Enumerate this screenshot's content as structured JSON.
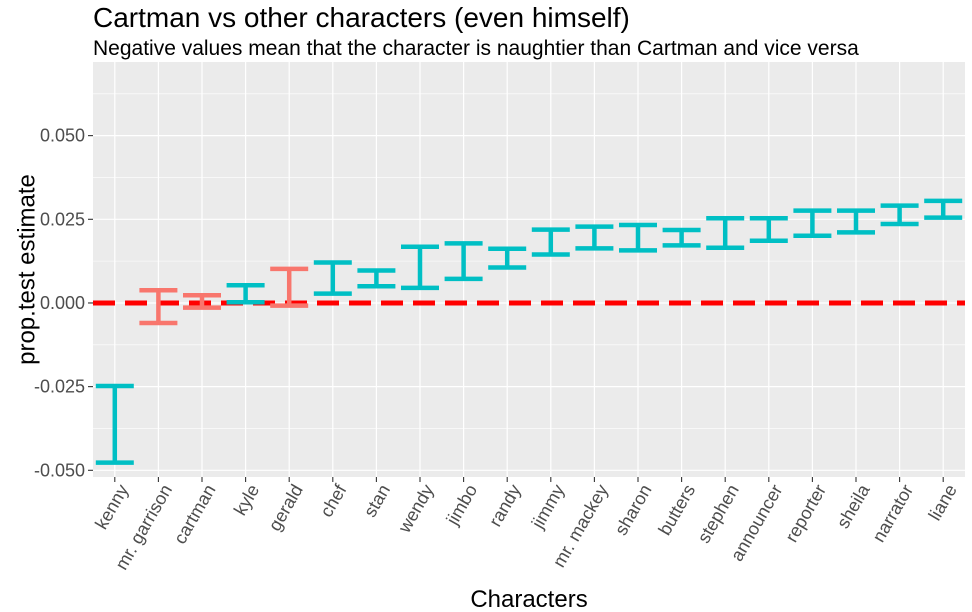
{
  "chart_data": {
    "type": "errorbar",
    "title": "Cartman vs other characters (even himself)",
    "subtitle": "Negative values mean that the character is naughtier than Cartman and vice versa",
    "xlabel": "Characters",
    "ylabel": "prop.test estimate",
    "ylim": [
      -0.052,
      0.072
    ],
    "y_ticks": [
      "-0.050",
      "-0.025",
      "0.000",
      "0.025",
      "0.050"
    ],
    "y_tick_values": [
      -0.05,
      -0.025,
      0,
      0.025,
      0.05
    ],
    "reference_line": {
      "y": 0,
      "style": "dashed",
      "color": "#ff0000"
    },
    "grid": true,
    "legend": "none",
    "colors": {
      "panel": "#ebebeb",
      "grid": "#ffffff",
      "significant": "#00bfc4",
      "not_significant": "#f8766d"
    },
    "categories": [
      "kenny",
      "mr. garrison",
      "cartman",
      "kyle",
      "gerald",
      "chef",
      "stan",
      "wendy",
      "jimbo",
      "randy",
      "jimmy",
      "mr. mackey",
      "sharon",
      "butters",
      "stephen",
      "announcer",
      "reporter",
      "sheila",
      "narrator",
      "liane"
    ],
    "lower": [
      -0.0477,
      -0.006,
      -0.0014,
      0.0002,
      -0.0008,
      0.0028,
      0.005,
      0.0045,
      0.0072,
      0.0106,
      0.0145,
      0.0163,
      0.0157,
      0.0172,
      0.0165,
      0.0186,
      0.0201,
      0.0211,
      0.0236,
      0.0255
    ],
    "upper": [
      -0.0248,
      0.0038,
      0.0023,
      0.0053,
      0.0102,
      0.0121,
      0.0097,
      0.0168,
      0.0178,
      0.0162,
      0.0219,
      0.0228,
      0.0233,
      0.0218,
      0.0253,
      0.0253,
      0.0276,
      0.0276,
      0.0291,
      0.0305
    ],
    "significant": [
      true,
      false,
      false,
      true,
      false,
      true,
      true,
      true,
      true,
      true,
      true,
      true,
      true,
      true,
      true,
      true,
      true,
      true,
      true,
      true
    ]
  }
}
